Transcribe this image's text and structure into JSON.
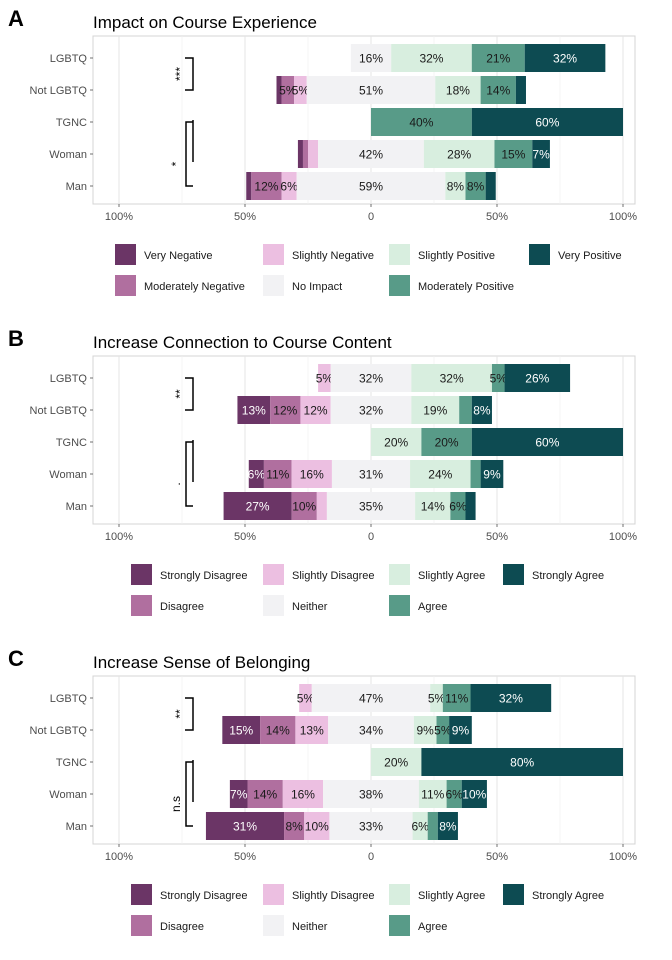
{
  "chart_data": [
    {
      "type": "bar",
      "panel": "A",
      "title": "Impact on Course Experience",
      "orientation": "horizontal-diverging",
      "categories": [
        "LGBTQ",
        "Not LGBTQ",
        "TGNC",
        "Woman",
        "Man"
      ],
      "x_ticks": [
        "100%",
        "50%",
        "0",
        "50%",
        "100%"
      ],
      "xlim": [
        -100,
        100
      ],
      "legend_position": "bottom",
      "series": [
        {
          "name": "Very Negative",
          "color": "#6b3566",
          "values": [
            0,
            2,
            0,
            2,
            2
          ]
        },
        {
          "name": "Moderately Negative",
          "color": "#b06f9f",
          "values": [
            0,
            5,
            0,
            2,
            12
          ]
        },
        {
          "name": "Slightly Negative",
          "color": "#ecbfe1",
          "values": [
            0,
            5,
            0,
            4,
            6
          ]
        },
        {
          "name": "No Impact",
          "color": "#f2f2f4",
          "values": [
            16,
            51,
            0,
            42,
            59
          ]
        },
        {
          "name": "Slightly Positive",
          "color": "#d8eedf",
          "values": [
            32,
            18,
            0,
            28,
            8
          ]
        },
        {
          "name": "Moderately Positive",
          "color": "#589b88",
          "values": [
            21,
            14,
            40,
            15,
            8
          ]
        },
        {
          "name": "Very Positive",
          "color": "#0d4b52",
          "values": [
            32,
            4,
            60,
            7,
            4
          ]
        }
      ],
      "data_labels": [
        [
          "",
          "",
          "",
          "16%",
          "32%",
          "21%",
          "32%"
        ],
        [
          "",
          "5%",
          "5%",
          "51%",
          "18%",
          "14%",
          ""
        ],
        [
          "",
          "",
          "",
          "",
          "",
          "40%",
          "60%"
        ],
        [
          "",
          "",
          "",
          "42%",
          "28%",
          "15%",
          "7%"
        ],
        [
          "",
          "12%",
          "6%",
          "59%",
          "8%",
          "8%",
          ""
        ]
      ],
      "significance": [
        {
          "rows": [
            0,
            1
          ],
          "label": "***",
          "inner": true
        },
        {
          "rows": [
            2,
            4
          ],
          "label": "*",
          "inner": false
        }
      ]
    },
    {
      "type": "bar",
      "panel": "B",
      "title": "Increase Connection to Course Content",
      "orientation": "horizontal-diverging",
      "categories": [
        "LGBTQ",
        "Not LGBTQ",
        "TGNC",
        "Woman",
        "Man"
      ],
      "x_ticks": [
        "100%",
        "50%",
        "0",
        "50%",
        "100%"
      ],
      "xlim": [
        -100,
        100
      ],
      "legend_position": "bottom",
      "series": [
        {
          "name": "Strongly Disagree",
          "color": "#6b3566",
          "values": [
            0,
            13,
            0,
            6,
            27
          ]
        },
        {
          "name": "Disagree",
          "color": "#b06f9f",
          "values": [
            0,
            12,
            0,
            11,
            10
          ]
        },
        {
          "name": "Slightly Disagree",
          "color": "#ecbfe1",
          "values": [
            5,
            12,
            0,
            16,
            4
          ]
        },
        {
          "name": "Neither",
          "color": "#f2f2f4",
          "values": [
            32,
            32,
            0,
            31,
            35
          ]
        },
        {
          "name": "Slightly Agree",
          "color": "#d8eedf",
          "values": [
            32,
            19,
            20,
            24,
            14
          ]
        },
        {
          "name": "Agree",
          "color": "#589b88",
          "values": [
            5,
            5,
            20,
            4,
            6
          ]
        },
        {
          "name": "Strongly Agree",
          "color": "#0d4b52",
          "values": [
            26,
            8,
            60,
            9,
            4
          ]
        }
      ],
      "data_labels": [
        [
          "",
          "",
          "5%",
          "32%",
          "32%",
          "5%",
          "26%"
        ],
        [
          "13%",
          "12%",
          "12%",
          "32%",
          "19%",
          "",
          "8%"
        ],
        [
          "",
          "",
          "",
          "",
          "20%",
          "20%",
          "60%"
        ],
        [
          "6%",
          "11%",
          "16%",
          "31%",
          "24%",
          "",
          "9%"
        ],
        [
          "27%",
          "10%",
          "",
          "35%",
          "14%",
          "6%",
          ""
        ]
      ],
      "significance": [
        {
          "rows": [
            0,
            1
          ],
          "label": "**",
          "inner": true
        },
        {
          "rows": [
            2,
            4
          ],
          "label": ".",
          "inner": false
        }
      ]
    },
    {
      "type": "bar",
      "panel": "C",
      "title": "Increase Sense of Belonging",
      "orientation": "horizontal-diverging",
      "categories": [
        "LGBTQ",
        "Not LGBTQ",
        "TGNC",
        "Woman",
        "Man"
      ],
      "x_ticks": [
        "100%",
        "50%",
        "0",
        "50%",
        "100%"
      ],
      "xlim": [
        -100,
        100
      ],
      "legend_position": "bottom",
      "series": [
        {
          "name": "Strongly Disagree",
          "color": "#6b3566",
          "values": [
            0,
            15,
            0,
            7,
            31
          ]
        },
        {
          "name": "Disagree",
          "color": "#b06f9f",
          "values": [
            0,
            14,
            0,
            14,
            8
          ]
        },
        {
          "name": "Slightly Disagree",
          "color": "#ecbfe1",
          "values": [
            5,
            13,
            0,
            16,
            10
          ]
        },
        {
          "name": "Neither",
          "color": "#f2f2f4",
          "values": [
            47,
            34,
            0,
            38,
            33
          ]
        },
        {
          "name": "Slightly Agree",
          "color": "#d8eedf",
          "values": [
            5,
            9,
            20,
            11,
            6
          ]
        },
        {
          "name": "Agree",
          "color": "#589b88",
          "values": [
            11,
            5,
            0,
            6,
            4
          ]
        },
        {
          "name": "Strongly Agree",
          "color": "#0d4b52",
          "values": [
            32,
            9,
            80,
            10,
            8
          ]
        }
      ],
      "data_labels": [
        [
          "",
          "",
          "5%",
          "47%",
          "5%",
          "11%",
          "32%"
        ],
        [
          "15%",
          "14%",
          "13%",
          "34%",
          "9%",
          "5%",
          "9%"
        ],
        [
          "",
          "",
          "",
          "",
          "20%",
          "",
          "80%"
        ],
        [
          "7%",
          "14%",
          "16%",
          "38%",
          "11%",
          "6%",
          "10%"
        ],
        [
          "31%",
          "8%",
          "10%",
          "33%",
          "6%",
          "",
          "8%"
        ]
      ],
      "significance": [
        {
          "rows": [
            0,
            1
          ],
          "label": "**",
          "inner": true
        },
        {
          "rows": [
            2,
            4
          ],
          "label": "n.s",
          "inner": false
        }
      ]
    }
  ]
}
